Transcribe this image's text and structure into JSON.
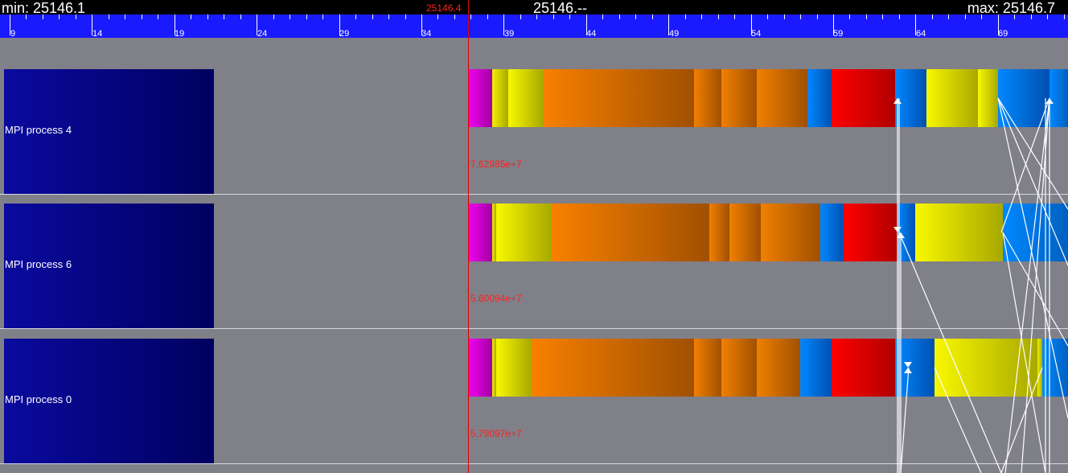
{
  "header": {
    "min_label": "min: 25146.1",
    "center_label": "25146.--",
    "max_label": "max: 25146.7",
    "cursor_label": "25146.4"
  },
  "ruler": {
    "ticks": [
      "9",
      "14",
      "19",
      "24",
      "29",
      "34",
      "39",
      "44",
      "49",
      "54",
      "59",
      "64",
      "69"
    ]
  },
  "processes": [
    {
      "name": "MPI process 4",
      "value": "7.62985e+7"
    },
    {
      "name": "MPI process 6",
      "value": "5.60094e+7"
    },
    {
      "name": "MPI process 0",
      "value": "5.79097e+7"
    }
  ],
  "colors": {
    "magenta": "#e000e0",
    "yellow": "#f0f000",
    "orange": "#f08000",
    "blue": "#0080f0",
    "red": "#f00000",
    "background": "#808088",
    "ruler": "#1a1aff"
  }
}
